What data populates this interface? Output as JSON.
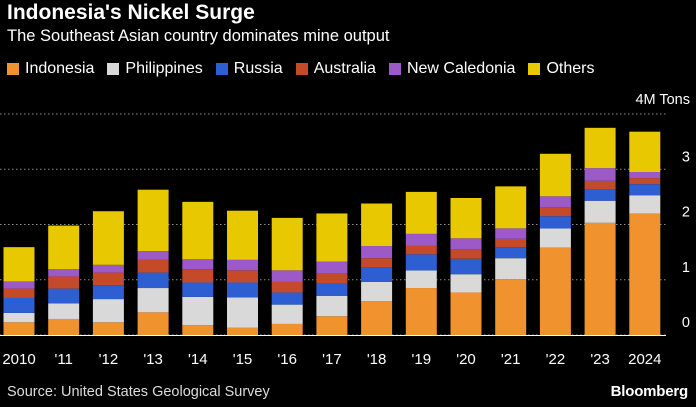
{
  "header": {
    "title": "Indonesia's Nickel Surge",
    "subtitle": "The Southeast Asian country dominates mine output"
  },
  "footer": {
    "source": "Source: United States Geological Survey",
    "brand": "Bloomberg"
  },
  "chart_data": {
    "type": "bar",
    "stacked": true,
    "unit_label": "4M Tons",
    "categories": [
      "2010",
      "'11",
      "'12",
      "'13",
      "'14",
      "'15",
      "'16",
      "'17",
      "'18",
      "'19",
      "'20",
      "'21",
      "'22",
      "'23",
      "2024"
    ],
    "ylim": [
      0,
      4
    ],
    "y_ticks": [
      {
        "value": 0,
        "label": "0"
      },
      {
        "value": 1,
        "label": "1"
      },
      {
        "value": 2,
        "label": "2"
      },
      {
        "value": 3,
        "label": "3"
      },
      {
        "value": 4,
        "label": ""
      }
    ],
    "grid": true,
    "legend_position": "top",
    "series": [
      {
        "name": "Indonesia",
        "color": "#f0922e",
        "values": [
          0.23,
          0.29,
          0.23,
          0.41,
          0.18,
          0.13,
          0.2,
          0.34,
          0.61,
          0.85,
          0.77,
          1.01,
          1.58,
          2.03,
          2.2
        ]
      },
      {
        "name": "Philippines",
        "color": "#d9d9d9",
        "values": [
          0.17,
          0.28,
          0.42,
          0.44,
          0.51,
          0.55,
          0.35,
          0.37,
          0.35,
          0.32,
          0.33,
          0.38,
          0.35,
          0.4,
          0.33
        ]
      },
      {
        "name": "Russia",
        "color": "#2d5fd3",
        "values": [
          0.27,
          0.27,
          0.25,
          0.28,
          0.26,
          0.27,
          0.22,
          0.22,
          0.27,
          0.29,
          0.28,
          0.2,
          0.22,
          0.2,
          0.2
        ]
      },
      {
        "name": "Australia",
        "color": "#c44a2a",
        "values": [
          0.17,
          0.22,
          0.23,
          0.23,
          0.24,
          0.22,
          0.19,
          0.18,
          0.16,
          0.16,
          0.17,
          0.15,
          0.16,
          0.16,
          0.11
        ]
      },
      {
        "name": "New Caledonia",
        "color": "#9b5ac8",
        "values": [
          0.13,
          0.13,
          0.14,
          0.16,
          0.18,
          0.19,
          0.21,
          0.22,
          0.22,
          0.21,
          0.2,
          0.19,
          0.2,
          0.23,
          0.11
        ]
      },
      {
        "name": "Others",
        "color": "#e8c800",
        "values": [
          0.62,
          0.79,
          0.97,
          1.11,
          1.04,
          0.89,
          0.95,
          0.87,
          0.77,
          0.76,
          0.73,
          0.76,
          0.77,
          0.73,
          0.73
        ]
      }
    ]
  }
}
